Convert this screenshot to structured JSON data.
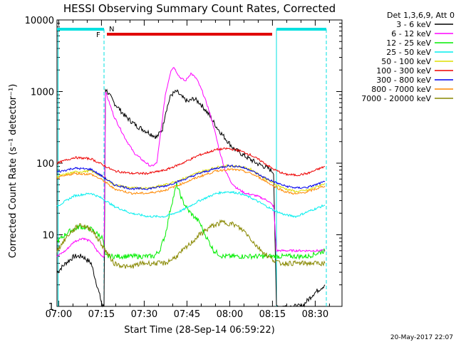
{
  "chart_data": {
    "type": "line",
    "title": "HESSI Observing Summary Count Rates, Corrected",
    "xlabel": "Start Time (28-Sep-14 06:59:22)",
    "ylabel": "Corrected Count Rate (s⁻¹ detector⁻¹)",
    "footer": "20-May-2017 22:07",
    "legend_title": "Det 1,3,6,9, Att 0",
    "x_unit": "minutes after 06:59:22",
    "xlim": [
      0,
      100
    ],
    "ylim": [
      1,
      10000
    ],
    "yscale": "log",
    "x_tick_labels": [
      "07:00",
      "07:15",
      "07:30",
      "07:45",
      "08:00",
      "08:15",
      "08:30"
    ],
    "x_tick_minutes": [
      0.6,
      15.6,
      30.6,
      45.6,
      60.6,
      75.6,
      90.6
    ],
    "y_tick_labels": [
      "1",
      "10",
      "100",
      "1000",
      "10000"
    ],
    "y_tick_values": [
      1,
      10,
      100,
      1000,
      10000
    ],
    "flags": {
      "night_label": "N",
      "flare_label": "F",
      "night_color": "#00e0e0",
      "flare_color": "#e00000",
      "night_intervals": [
        [
          0,
          16.5
        ],
        [
          77,
          94.5
        ]
      ],
      "flare_interval": [
        17.5,
        75.5
      ],
      "night_boundaries_min": [
        16.5,
        77
      ]
    },
    "series": [
      {
        "name": "3 - 6 keV",
        "color": "#000000",
        "x": [
          0,
          3,
          6,
          9,
          12,
          14,
          16,
          16.5,
          17,
          20,
          24,
          28,
          32,
          35,
          37,
          38,
          40,
          42,
          44,
          46,
          48,
          50,
          52,
          54,
          56,
          58,
          60,
          62,
          66,
          70,
          74,
          76,
          77,
          78,
          82,
          86,
          90,
          94
        ],
        "y": [
          3,
          4,
          5,
          5,
          4,
          2,
          1,
          1,
          1100,
          700,
          450,
          330,
          270,
          230,
          300,
          500,
          900,
          1000,
          820,
          720,
          800,
          700,
          560,
          430,
          320,
          250,
          200,
          160,
          125,
          100,
          85,
          75,
          1,
          1,
          1,
          1,
          1.5,
          2
        ]
      },
      {
        "name": "6 - 12 keV",
        "color": "#ff00ff",
        "x": [
          0,
          3,
          6,
          9,
          12,
          14,
          16,
          16.5,
          17,
          20,
          24,
          27,
          30,
          33,
          35,
          36,
          38,
          40,
          41,
          43,
          45,
          47,
          49,
          51,
          53,
          55,
          57,
          59,
          61,
          63,
          66,
          70,
          74,
          76,
          77,
          82,
          86,
          90,
          94
        ],
        "y": [
          5,
          6,
          8,
          9,
          8,
          6,
          5,
          5,
          1000,
          450,
          220,
          140,
          110,
          90,
          100,
          200,
          900,
          2000,
          2200,
          1600,
          1400,
          1800,
          1500,
          1000,
          600,
          320,
          150,
          80,
          55,
          45,
          38,
          35,
          30,
          25,
          6,
          6,
          6,
          6,
          6
        ]
      },
      {
        "name": "12 - 25 keV",
        "color": "#00ee00",
        "x": [
          0,
          4,
          8,
          12,
          16,
          17,
          20,
          25,
          30,
          34,
          36,
          38,
          40,
          42,
          44,
          46,
          48,
          50,
          52,
          55,
          58,
          62,
          66,
          70,
          74,
          77,
          82,
          88,
          94
        ],
        "y": [
          8,
          11,
          13,
          12,
          9,
          5,
          5,
          5,
          5,
          5,
          6,
          10,
          25,
          50,
          30,
          22,
          18,
          15,
          10,
          6,
          5,
          5,
          5,
          5,
          5,
          5,
          5,
          5,
          6
        ]
      },
      {
        "name": "25 - 50 keV",
        "color": "#00eeee",
        "x": [
          0,
          6,
          12,
          16,
          20,
          26,
          32,
          38,
          44,
          50,
          56,
          60,
          64,
          68,
          72,
          76,
          80,
          84,
          88,
          94
        ],
        "y": [
          25,
          35,
          38,
          32,
          25,
          20,
          18,
          18,
          22,
          30,
          38,
          40,
          38,
          33,
          27,
          22,
          19,
          18,
          21,
          26
        ]
      },
      {
        "name": "50 - 100 keV",
        "color": "#dddd00",
        "x": [
          0,
          6,
          12,
          16,
          20,
          26,
          32,
          38,
          44,
          50,
          56,
          60,
          64,
          68,
          72,
          76,
          80,
          84,
          88,
          94
        ],
        "y": [
          65,
          75,
          78,
          65,
          50,
          45,
          45,
          50,
          60,
          75,
          88,
          92,
          90,
          82,
          65,
          52,
          44,
          40,
          42,
          52
        ]
      },
      {
        "name": "100 - 300 keV",
        "color": "#ee0000",
        "x": [
          0,
          6,
          12,
          16,
          20,
          26,
          32,
          38,
          44,
          50,
          56,
          60,
          64,
          68,
          72,
          76,
          80,
          84,
          88,
          94
        ],
        "y": [
          100,
          120,
          115,
          95,
          78,
          72,
          72,
          80,
          100,
          130,
          155,
          160,
          150,
          130,
          105,
          82,
          70,
          68,
          72,
          90
        ]
      },
      {
        "name": "300 - 800 keV",
        "color": "#0000ee",
        "x": [
          0,
          6,
          12,
          16,
          20,
          26,
          32,
          38,
          44,
          50,
          56,
          60,
          64,
          68,
          72,
          76,
          80,
          84,
          88,
          94
        ],
        "y": [
          75,
          85,
          82,
          65,
          50,
          44,
          44,
          48,
          58,
          72,
          85,
          92,
          90,
          80,
          65,
          55,
          48,
          45,
          46,
          55
        ]
      },
      {
        "name": "800 - 7000 keV",
        "color": "#ff8800",
        "x": [
          0,
          6,
          12,
          16,
          20,
          26,
          32,
          38,
          44,
          50,
          56,
          60,
          64,
          68,
          72,
          76,
          80,
          84,
          88,
          94
        ],
        "y": [
          62,
          72,
          70,
          58,
          44,
          38,
          38,
          42,
          52,
          65,
          78,
          82,
          80,
          72,
          60,
          48,
          40,
          37,
          40,
          48
        ]
      },
      {
        "name": "7000 - 20000 keV",
        "color": "#888800",
        "x": [
          0,
          4,
          8,
          12,
          16,
          20,
          25,
          30,
          34,
          38,
          42,
          46,
          50,
          54,
          58,
          62,
          66,
          70,
          74,
          78,
          82,
          86,
          90,
          94
        ],
        "y": [
          6,
          10,
          14,
          12,
          7,
          4,
          3.5,
          4,
          4,
          4,
          5,
          7,
          10,
          13,
          15,
          14,
          11,
          7,
          5,
          4,
          4,
          4,
          4,
          4
        ]
      }
    ]
  }
}
